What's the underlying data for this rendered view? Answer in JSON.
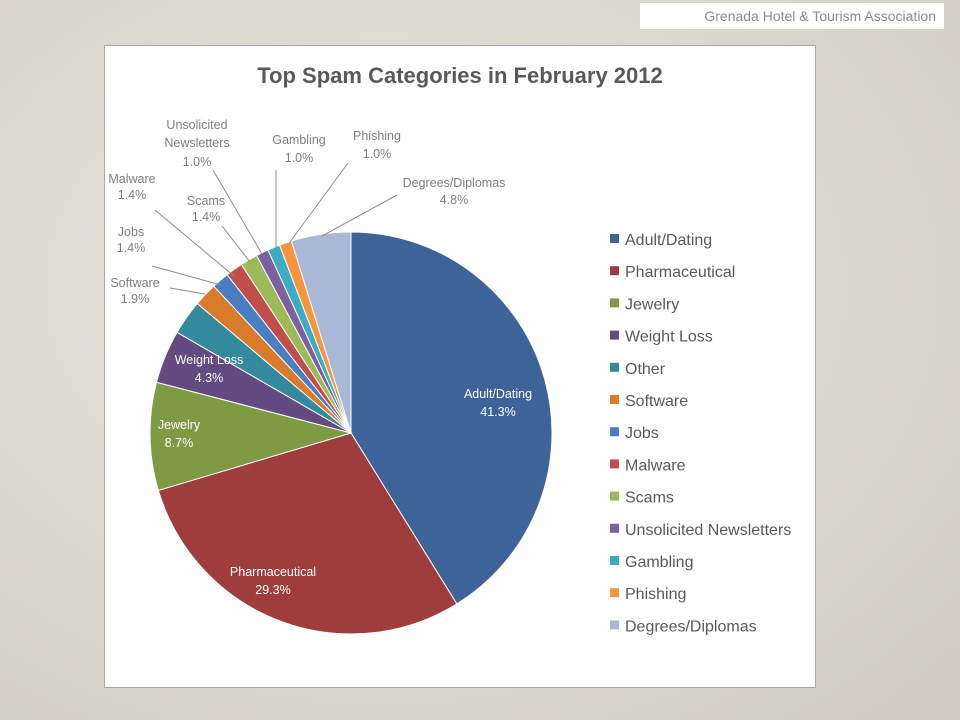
{
  "header": {
    "brand": "Grenada Hotel & Tourism Association"
  },
  "chart_data": {
    "type": "pie",
    "title": "Top Spam Categories in February 2012",
    "legend_position": "right",
    "slices": [
      {
        "name": "Adult/Dating",
        "value": 41.3,
        "label": "41.3%",
        "color": "#3d6399",
        "label_pos": "inside"
      },
      {
        "name": "Pharmaceutical",
        "value": 29.3,
        "label": "29.3%",
        "color": "#9e3d3b",
        "label_pos": "inside"
      },
      {
        "name": "Jewelry",
        "value": 8.7,
        "label": "8.7%",
        "color": "#7e9a43",
        "label_pos": "inside"
      },
      {
        "name": "Weight Loss",
        "value": 4.3,
        "label": "4.3%",
        "color": "#634a80",
        "label_pos": "inside"
      },
      {
        "name": "Other",
        "value": 2.8,
        "label": "",
        "color": "#338a9c",
        "label_pos": "none"
      },
      {
        "name": "Software",
        "value": 1.9,
        "label": "1.9%",
        "color": "#d97b2b",
        "label_pos": "outside"
      },
      {
        "name": "Jobs",
        "value": 1.4,
        "label": "1.4%",
        "color": "#4a7ec2",
        "label_pos": "outside"
      },
      {
        "name": "Malware",
        "value": 1.4,
        "label": "1.4%",
        "color": "#c24e4b",
        "label_pos": "outside"
      },
      {
        "name": "Scams",
        "value": 1.4,
        "label": "1.4%",
        "color": "#9bbb59",
        "label_pos": "outside"
      },
      {
        "name": "Unsolicited Newsletters",
        "value": 1.0,
        "label": "1.0%",
        "color": "#7e5fa1",
        "label_pos": "outside"
      },
      {
        "name": "Gambling",
        "value": 1.0,
        "label": "1.0%",
        "color": "#3cacc4",
        "label_pos": "outside"
      },
      {
        "name": "Phishing",
        "value": 1.0,
        "label": "1.0%",
        "color": "#f5963d",
        "label_pos": "outside"
      },
      {
        "name": "Degrees/Diplomas",
        "value": 4.8,
        "label": "4.8%",
        "color": "#a8b8d6",
        "label_pos": "outside"
      }
    ]
  }
}
